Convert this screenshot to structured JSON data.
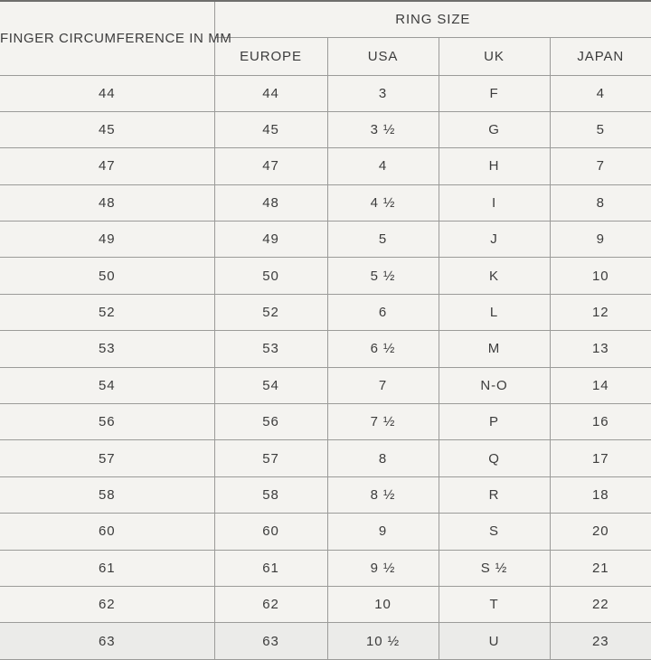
{
  "page": {
    "background": "#f4f3f0",
    "text_color": "#3c3c3c",
    "grid_line_color": "#9b9b99",
    "top_border_color": "#6f6f6d",
    "clipped_row_background": "#ebebe9"
  },
  "chart_data": {
    "type": "table",
    "row_header": "FINGER CIRCUMFERENCE IN MM",
    "group_header": "RING SIZE",
    "regions": [
      "EUROPE",
      "USA",
      "UK",
      "JAPAN"
    ],
    "columns": [
      "FINGER CIRCUMFERENCE IN MM",
      "EUROPE",
      "USA",
      "UK",
      "JAPAN"
    ],
    "rows": [
      [
        "44",
        "44",
        "3",
        "F",
        "4"
      ],
      [
        "45",
        "45",
        "3 ½",
        "G",
        "5"
      ],
      [
        "47",
        "47",
        "4",
        "H",
        "7"
      ],
      [
        "48",
        "48",
        "4 ½",
        "I",
        "8"
      ],
      [
        "49",
        "49",
        "5",
        "J",
        "9"
      ],
      [
        "50",
        "50",
        "5 ½",
        "K",
        "10"
      ],
      [
        "52",
        "52",
        "6",
        "L",
        "12"
      ],
      [
        "53",
        "53",
        "6 ½",
        "M",
        "13"
      ],
      [
        "54",
        "54",
        "7",
        "N-O",
        "14"
      ],
      [
        "56",
        "56",
        "7 ½",
        "P",
        "16"
      ],
      [
        "57",
        "57",
        "8",
        "Q",
        "17"
      ],
      [
        "58",
        "58",
        "8 ½",
        "R",
        "18"
      ],
      [
        "60",
        "60",
        "9",
        "S",
        "20"
      ],
      [
        "61",
        "61",
        "9 ½",
        "S ½",
        "21"
      ],
      [
        "62",
        "62",
        "10",
        "T",
        "22"
      ],
      [
        "63",
        "63",
        "10 ½",
        "U",
        "23"
      ]
    ]
  }
}
